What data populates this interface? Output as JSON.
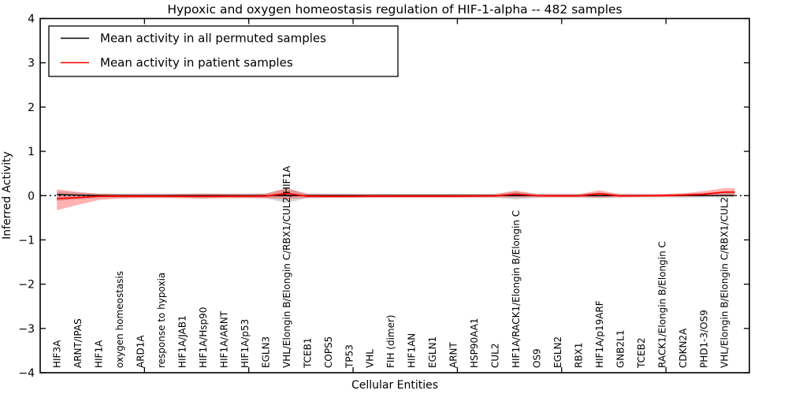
{
  "chart_data": {
    "type": "line",
    "title": "Hypoxic and oxygen homeostasis regulation of HIF-1-alpha -- 482 samples",
    "xlabel": "Cellular Entities",
    "ylabel": "Inferred Activity",
    "ylim": [
      -4,
      4
    ],
    "yticks": [
      4,
      3,
      2,
      1,
      0,
      -1,
      -2,
      -3,
      -4
    ],
    "ytick_labels": [
      "4",
      "3",
      "2",
      "1",
      "0",
      "−1",
      "−2",
      "−3",
      "−4"
    ],
    "categories": [
      "HIF3A",
      "ARNT/IPAS",
      "HIF1A",
      "oxygen homeostasis",
      "ARD1A",
      "response to hypoxia",
      "HIF1A/JAB1",
      "HIF1A/Hsp90",
      "HIF1A/ARNT",
      "HIF1A/p53",
      "EGLN3",
      "VHL/Elongin B/Elongin C/RBX1/CUL2/HIF1A",
      "TCEB1",
      "COPS5",
      "TP53",
      "VHL",
      "FIH (dimer)",
      "HIF1AN",
      "EGLN1",
      "ARNT",
      "HSP90AA1",
      "CUL2",
      "HIF1A/RACK1/Elongin B/Elongin C",
      "OS9",
      "EGLN2",
      "RBX1",
      "HIF1A/p19ARF",
      "GNB2L1",
      "TCEB2",
      "RACK1/Elongin B/Elongin C",
      "CDKN2A",
      "PHD1-3/OS9",
      "VHL/Elongin B/Elongin C/RBX1/CUL2"
    ],
    "series": [
      {
        "name": "Mean activity in all permuted samples",
        "color": "#000000",
        "values": [
          0.025,
          0.012,
          0.004,
          0.002,
          0.002,
          0.002,
          0.002,
          0.002,
          0.002,
          0.002,
          0.002,
          0.0,
          0.002,
          0.002,
          0.002,
          0.002,
          0.002,
          0.002,
          0.002,
          0.002,
          0.002,
          0.002,
          0.0,
          0.002,
          0.002,
          0.002,
          0.0,
          0.002,
          0.002,
          0.002,
          0.002,
          0.002,
          0.002
        ]
      },
      {
        "name": "Mean activity in patient samples",
        "color": "#ff0000",
        "values": [
          -0.07,
          -0.045,
          -0.015,
          -0.012,
          -0.012,
          -0.012,
          -0.015,
          -0.018,
          -0.015,
          -0.012,
          -0.012,
          0.05,
          -0.012,
          -0.015,
          -0.015,
          -0.012,
          -0.012,
          -0.012,
          -0.012,
          -0.012,
          -0.01,
          -0.008,
          0.035,
          -0.002,
          -0.006,
          -0.006,
          0.045,
          -0.006,
          -0.004,
          0.0,
          0.012,
          0.03,
          0.08
        ]
      }
    ],
    "bands": [
      {
        "name": "permuted-samples-spread",
        "color": "rgba(110,110,110,0.28)",
        "upper": [
          0.1,
          0.07,
          0.05,
          0.045,
          0.045,
          0.045,
          0.045,
          0.05,
          0.045,
          0.045,
          0.05,
          0.16,
          0.05,
          0.045,
          0.045,
          0.04,
          0.04,
          0.04,
          0.04,
          0.04,
          0.04,
          0.04,
          0.09,
          0.05,
          0.045,
          0.045,
          0.07,
          0.045,
          0.04,
          0.04,
          0.05,
          0.06,
          0.08
        ],
        "lower": [
          -0.12,
          -0.085,
          -0.055,
          -0.05,
          -0.05,
          -0.05,
          -0.05,
          -0.055,
          -0.05,
          -0.05,
          -0.055,
          -0.17,
          -0.055,
          -0.05,
          -0.05,
          -0.045,
          -0.045,
          -0.045,
          -0.045,
          -0.045,
          -0.045,
          -0.045,
          -0.09,
          -0.05,
          -0.045,
          -0.045,
          -0.055,
          -0.045,
          -0.04,
          -0.04,
          -0.05,
          -0.045,
          -0.04
        ]
      },
      {
        "name": "patient-samples-spread",
        "color": "rgba(255,0,0,0.30)",
        "upper": [
          0.14,
          0.085,
          0.04,
          0.035,
          0.032,
          0.032,
          0.04,
          0.045,
          0.04,
          0.036,
          0.04,
          0.17,
          0.036,
          0.034,
          0.032,
          0.03,
          0.03,
          0.03,
          0.03,
          0.03,
          0.03,
          0.03,
          0.115,
          0.032,
          0.03,
          0.03,
          0.12,
          0.03,
          0.03,
          0.035,
          0.05,
          0.1,
          0.17
        ],
        "lower": [
          -0.33,
          -0.21,
          -0.1,
          -0.065,
          -0.055,
          -0.055,
          -0.06,
          -0.07,
          -0.06,
          -0.058,
          -0.06,
          -0.08,
          -0.055,
          -0.052,
          -0.05,
          -0.045,
          -0.042,
          -0.042,
          -0.042,
          -0.042,
          -0.04,
          -0.038,
          -0.045,
          -0.038,
          -0.036,
          -0.036,
          -0.05,
          -0.036,
          -0.032,
          -0.028,
          -0.02,
          0.0,
          0.01
        ]
      }
    ],
    "baseline": {
      "y": 0,
      "style": "dotted",
      "color": "#000000"
    },
    "legend": {
      "position": "upper left"
    },
    "layout": {
      "xlim": [
        0,
        34
      ],
      "entity_offset": 0.8,
      "xticks": [
        5,
        10,
        15,
        20,
        25,
        30
      ],
      "x_data_end": 33.3,
      "grid": false
    }
  }
}
